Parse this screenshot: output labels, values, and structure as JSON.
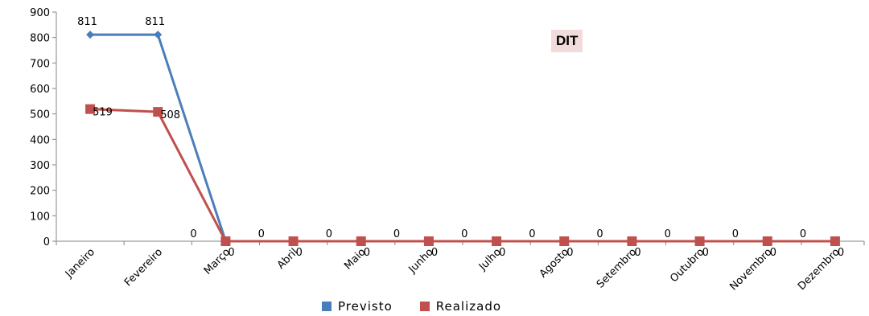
{
  "chart_data": {
    "type": "line",
    "title": "DIT",
    "categories": [
      "Janeiro",
      "Fevereiro",
      "Março",
      "Abril",
      "Maio",
      "Junho",
      "Julho",
      "Agosto",
      "Setembro",
      "Outubro",
      "Novembro",
      "Dezembro"
    ],
    "ylim": [
      0,
      900
    ],
    "yticks": [
      0,
      100,
      200,
      300,
      400,
      500,
      600,
      700,
      800,
      900
    ],
    "grid": false,
    "legend_position": "bottom",
    "series": [
      {
        "name": "Previsto",
        "color": "#4a7ebb",
        "marker": "diamond",
        "values": [
          811,
          811,
          0,
          0,
          0,
          0,
          0,
          0,
          0,
          0,
          0,
          0
        ],
        "labels": [
          "811",
          "811",
          "0",
          "0",
          "0",
          "0",
          "0",
          "0",
          "0",
          "0",
          "0",
          "0"
        ]
      },
      {
        "name": "Realizado",
        "color": "#c0504d",
        "marker": "square",
        "values": [
          519,
          508,
          0,
          0,
          0,
          0,
          0,
          0,
          0,
          0,
          0,
          0
        ],
        "labels": [
          "519",
          "508",
          "0",
          "0",
          "0",
          "0",
          "0",
          "0",
          "0",
          "0",
          "0",
          "0"
        ]
      }
    ]
  }
}
